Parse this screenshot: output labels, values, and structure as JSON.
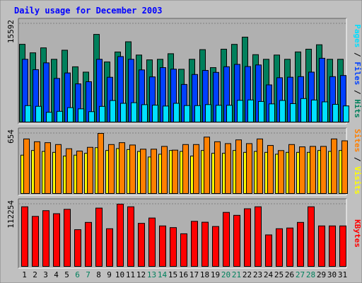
{
  "title": "Daily usage for December 2003",
  "colors": {
    "background": "#C0C0C0",
    "plot_bg": "#B0B0B0",
    "title": "#0000FF",
    "hits": "#00805C",
    "files": "#0040FF",
    "pages": "#00E0FF",
    "visits": "#FFFF00",
    "sites": "#FF8000",
    "kbytes": "#FF0000",
    "weekend_label": "#00805C"
  },
  "chart_data": [
    {
      "type": "bar",
      "panel": "hits-files-pages",
      "ymax_label": "15592",
      "ylim": [
        0,
        15592
      ],
      "side_label": [
        "Pages",
        " / ",
        "Files",
        " / ",
        "Hits"
      ],
      "categories": [
        "1",
        "2",
        "3",
        "4",
        "5",
        "6",
        "7",
        "8",
        "9",
        "10",
        "11",
        "12",
        "13",
        "14",
        "15",
        "16",
        "17",
        "18",
        "19",
        "20",
        "21",
        "22",
        "23",
        "24",
        "25",
        "26",
        "27",
        "28",
        "29",
        "30",
        "31"
      ],
      "weekend_days": [
        6,
        7,
        13,
        14,
        20,
        21,
        27,
        28
      ],
      "series": [
        {
          "name": "Hits",
          "values": [
            12350,
            11010,
            11790,
            9990,
            11420,
            8810,
            7970,
            13910,
            9570,
            11140,
            12750,
            10660,
            9900,
            9990,
            10870,
            8420,
            9990,
            11510,
            8680,
            11580,
            12340,
            13480,
            10720,
            9990,
            10660,
            9990,
            11150,
            11580,
            12280,
            9990,
            9990
          ]
        },
        {
          "name": "Files",
          "values": [
            9990,
            8360,
            9430,
            6980,
            7840,
            6120,
            6460,
            9990,
            7160,
            10420,
            9990,
            8320,
            7220,
            8680,
            8440,
            6030,
            7600,
            8240,
            7930,
            8820,
            9190,
            8850,
            9100,
            5960,
            7090,
            7170,
            7260,
            7970,
            10150,
            7260,
            7440
          ]
        },
        {
          "name": "Pages",
          "values": [
            2700,
            2590,
            1650,
            1800,
            2380,
            2190,
            1750,
            2580,
            3500,
            3060,
            3160,
            2850,
            2770,
            2630,
            3060,
            2710,
            2700,
            2860,
            2750,
            2750,
            3530,
            3590,
            3350,
            2970,
            3510,
            3010,
            3810,
            3580,
            3290,
            2900,
            2650
          ]
        }
      ]
    },
    {
      "type": "bar",
      "panel": "visits-sites",
      "ymax_label": "654",
      "ylim": [
        0,
        654
      ],
      "side_label": [
        "Sites",
        " / ",
        "Visits"
      ],
      "categories": [
        "1",
        "2",
        "3",
        "4",
        "5",
        "6",
        "7",
        "8",
        "9",
        "10",
        "11",
        "12",
        "13",
        "14",
        "15",
        "16",
        "17",
        "18",
        "19",
        "20",
        "21",
        "22",
        "23",
        "24",
        "25",
        "26",
        "27",
        "28",
        "29",
        "30",
        "31"
      ],
      "series": [
        {
          "name": "Visits",
          "values": [
            420,
            470,
            460,
            450,
            410,
            420,
            440,
            500,
            470,
            490,
            480,
            460,
            400,
            430,
            470,
            460,
            410,
            470,
            440,
            440,
            470,
            450,
            460,
            450,
            430,
            450,
            450,
            450,
            470,
            460,
            470
          ]
        },
        {
          "name": "Sites",
          "values": [
            594,
            564,
            554,
            534,
            489,
            464,
            504,
            654,
            534,
            554,
            529,
            484,
            484,
            514,
            474,
            534,
            534,
            614,
            564,
            544,
            584,
            544,
            594,
            524,
            469,
            534,
            509,
            514,
            514,
            594,
            574
          ]
        }
      ]
    },
    {
      "type": "bar",
      "panel": "kbytes",
      "ymax_label": "112254",
      "ylim": [
        0,
        112254
      ],
      "side_label": [
        "KBytes"
      ],
      "categories": [
        "1",
        "2",
        "3",
        "4",
        "5",
        "6",
        "7",
        "8",
        "9",
        "10",
        "11",
        "12",
        "13",
        "14",
        "15",
        "16",
        "17",
        "18",
        "19",
        "20",
        "21",
        "22",
        "23",
        "24",
        "25",
        "26",
        "27",
        "28",
        "29",
        "30",
        "31"
      ],
      "series": [
        {
          "name": "KBytes",
          "values": [
            107500,
            90400,
            100600,
            95200,
            103000,
            66700,
            79700,
            105200,
            68400,
            112254,
            107500,
            78000,
            87500,
            73400,
            70400,
            59400,
            81600,
            80000,
            72400,
            97500,
            92300,
            104000,
            107500,
            57400,
            68400,
            69700,
            79700,
            107500,
            73400,
            73400,
            73400
          ]
        }
      ]
    }
  ]
}
